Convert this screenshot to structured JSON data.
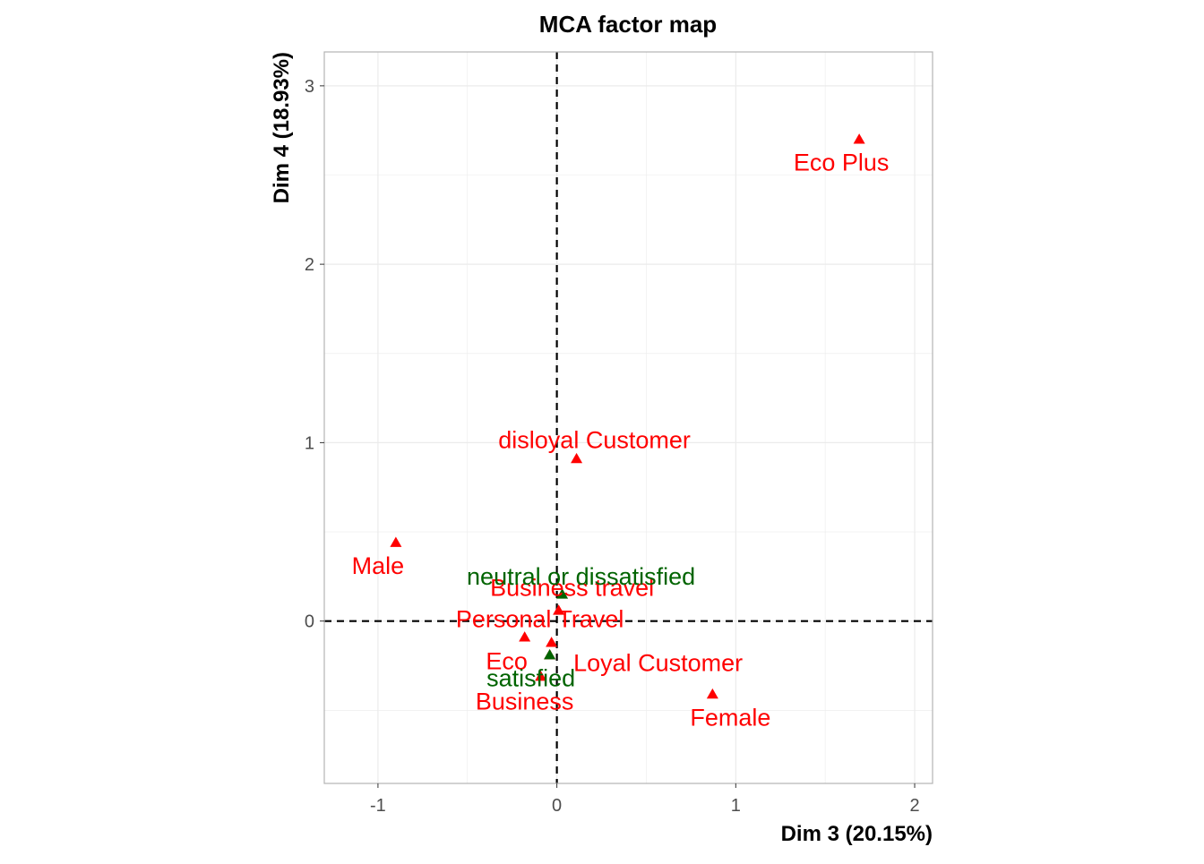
{
  "chart_data": {
    "type": "scatter",
    "title": "MCA factor map",
    "xlabel": "Dim 3 (20.15%)",
    "ylabel": "Dim 4 (18.93%)",
    "xlim": [
      -1.3,
      2.1
    ],
    "ylim": [
      -0.91,
      3.19
    ],
    "x_ticks": [
      -1,
      0,
      1,
      2
    ],
    "y_ticks": [
      0,
      1,
      2,
      3
    ],
    "x_tick_labels": [
      "-1",
      "0",
      "1",
      "2"
    ],
    "y_tick_labels": [
      "0",
      "1",
      "2",
      "3"
    ],
    "grid": true,
    "reference_lines": {
      "x": 0,
      "y": 0,
      "style": "dashed"
    },
    "marker": "triangle",
    "colors": {
      "category": "#ff0000",
      "supplementary": "#006400",
      "grid": "#ebebeb",
      "panel_border": "#b3b3b3",
      "axis_text": "#4d4d4d",
      "reference": "#000000"
    },
    "points": [
      {
        "label": "Eco Plus",
        "x": 1.69,
        "y": 2.7,
        "group": "category"
      },
      {
        "label": "disloyal Customer",
        "x": 0.11,
        "y": 0.91,
        "group": "category"
      },
      {
        "label": "Male",
        "x": -0.9,
        "y": 0.44,
        "group": "category"
      },
      {
        "label": "Business travel",
        "x": 0.01,
        "y": 0.06,
        "group": "category"
      },
      {
        "label": "Personal Travel",
        "x": -0.03,
        "y": -0.12,
        "group": "category"
      },
      {
        "label": "Eco",
        "x": -0.18,
        "y": -0.09,
        "group": "category"
      },
      {
        "label": "Loyal Customer",
        "x": -0.04,
        "y": -0.19,
        "group": "category"
      },
      {
        "label": "Business",
        "x": -0.09,
        "y": -0.31,
        "group": "category"
      },
      {
        "label": "Female",
        "x": 0.87,
        "y": -0.41,
        "group": "category"
      },
      {
        "label": "neutral or dissatisfied",
        "x": 0.03,
        "y": 0.15,
        "group": "supplementary"
      },
      {
        "label": "satisfied",
        "x": -0.04,
        "y": -0.19,
        "group": "supplementary"
      }
    ]
  }
}
